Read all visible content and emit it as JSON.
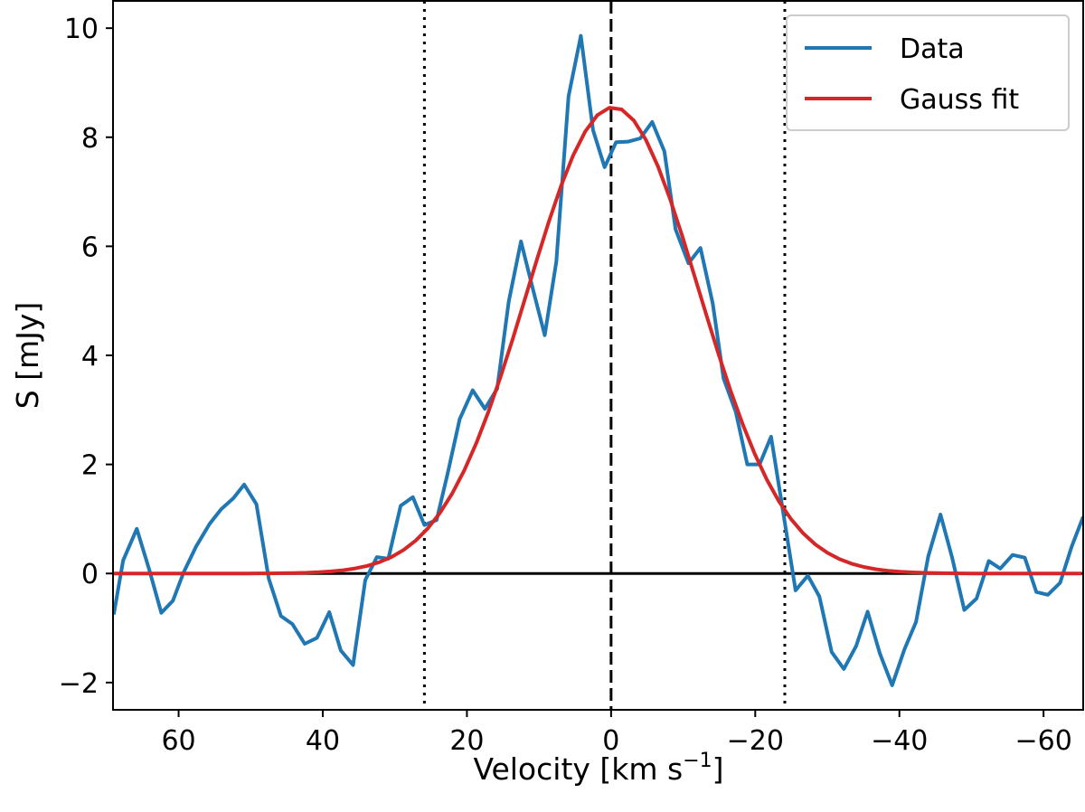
{
  "chart_data": {
    "type": "line",
    "title": "",
    "xlabel": "Velocity [km s",
    "xlabel_sup": "−1",
    "xlabel_end": "]",
    "ylabel": "S [mJy]",
    "xlim": [
      69.1,
      -65.5
    ],
    "ylim": [
      -2.5,
      10.5
    ],
    "x_inverted": true,
    "grid": false,
    "legend_position": "top-right",
    "xticks": [
      60,
      40,
      20,
      0,
      -20,
      -40,
      -60
    ],
    "xtick_labels": [
      "60",
      "40",
      "20",
      "0",
      "−20",
      "−40",
      "−60"
    ],
    "yticks": [
      -2,
      0,
      2,
      4,
      6,
      8,
      10
    ],
    "ytick_labels": [
      "−2",
      "0",
      "2",
      "4",
      "6",
      "8",
      "10"
    ],
    "series": [
      {
        "name": "Data",
        "color": "#1f77b4",
        "x": [
          69.0,
          67.7,
          65.8,
          64.1,
          62.4,
          60.8,
          59.3,
          57.6,
          55.7,
          54.1,
          52.4,
          50.9,
          49.2,
          47.5,
          45.8,
          44.2,
          42.5,
          40.8,
          39.1,
          37.5,
          35.8,
          34.1,
          32.5,
          30.9,
          29.2,
          27.5,
          25.9,
          24.2,
          22.7,
          21.0,
          19.2,
          17.5,
          15.8,
          14.2,
          12.5,
          10.9,
          9.2,
          7.6,
          5.9,
          4.2,
          2.5,
          0.9,
          -0.7,
          -2.4,
          -4.05,
          -5.7,
          -7.4,
          -8.95,
          -10.75,
          -12.4,
          -14.1,
          -15.6,
          -17.3,
          -18.9,
          -20.6,
          -22.2,
          -23.9,
          -25.6,
          -27.3,
          -28.9,
          -30.6,
          -32.3,
          -34.0,
          -35.6,
          -37.3,
          -39.0,
          -40.7,
          -42.3,
          -44.0,
          -45.7,
          -47.3,
          -49.0,
          -50.7,
          -52.4,
          -54.0,
          -55.7,
          -57.4,
          -59.0,
          -60.6,
          -62.3,
          -63.9,
          -65.5
        ],
        "y": [
          -0.75,
          0.24,
          0.82,
          0.08,
          -0.72,
          -0.5,
          0.02,
          0.49,
          0.91,
          1.18,
          1.38,
          1.63,
          1.27,
          -0.09,
          -0.78,
          -0.93,
          -1.29,
          -1.18,
          -0.71,
          -1.41,
          -1.68,
          -0.12,
          0.3,
          0.27,
          1.24,
          1.4,
          0.89,
          0.98,
          1.82,
          2.83,
          3.36,
          3.02,
          3.39,
          4.99,
          6.09,
          5.24,
          4.37,
          5.72,
          8.75,
          9.86,
          8.13,
          7.45,
          7.91,
          7.92,
          7.98,
          8.28,
          7.74,
          6.31,
          5.69,
          5.97,
          4.95,
          3.58,
          2.96,
          2.0,
          2.0,
          2.51,
          1.1,
          -0.31,
          -0.04,
          -0.42,
          -1.44,
          -1.75,
          -1.33,
          -0.7,
          -1.47,
          -2.05,
          -1.39,
          -0.89,
          0.31,
          1.08,
          0.3,
          -0.67,
          -0.46,
          0.23,
          0.09,
          0.34,
          0.29,
          -0.34,
          -0.39,
          -0.17,
          0.49,
          1.04
        ]
      },
      {
        "name": "Gauss fit",
        "color": "#d62728",
        "model": "gaussian",
        "amplitude": 8.55,
        "center": -0.3,
        "sigma": 11.9
      }
    ],
    "reference_lines": [
      {
        "orientation": "horizontal",
        "value": 0,
        "style": "solid",
        "color": "#000000"
      },
      {
        "orientation": "vertical",
        "value": 0,
        "style": "dashed",
        "color": "#000000"
      },
      {
        "orientation": "vertical",
        "value": 25.9,
        "style": "dotted",
        "color": "#000000"
      },
      {
        "orientation": "vertical",
        "value": -24.1,
        "style": "dotted",
        "color": "#000000"
      }
    ]
  }
}
